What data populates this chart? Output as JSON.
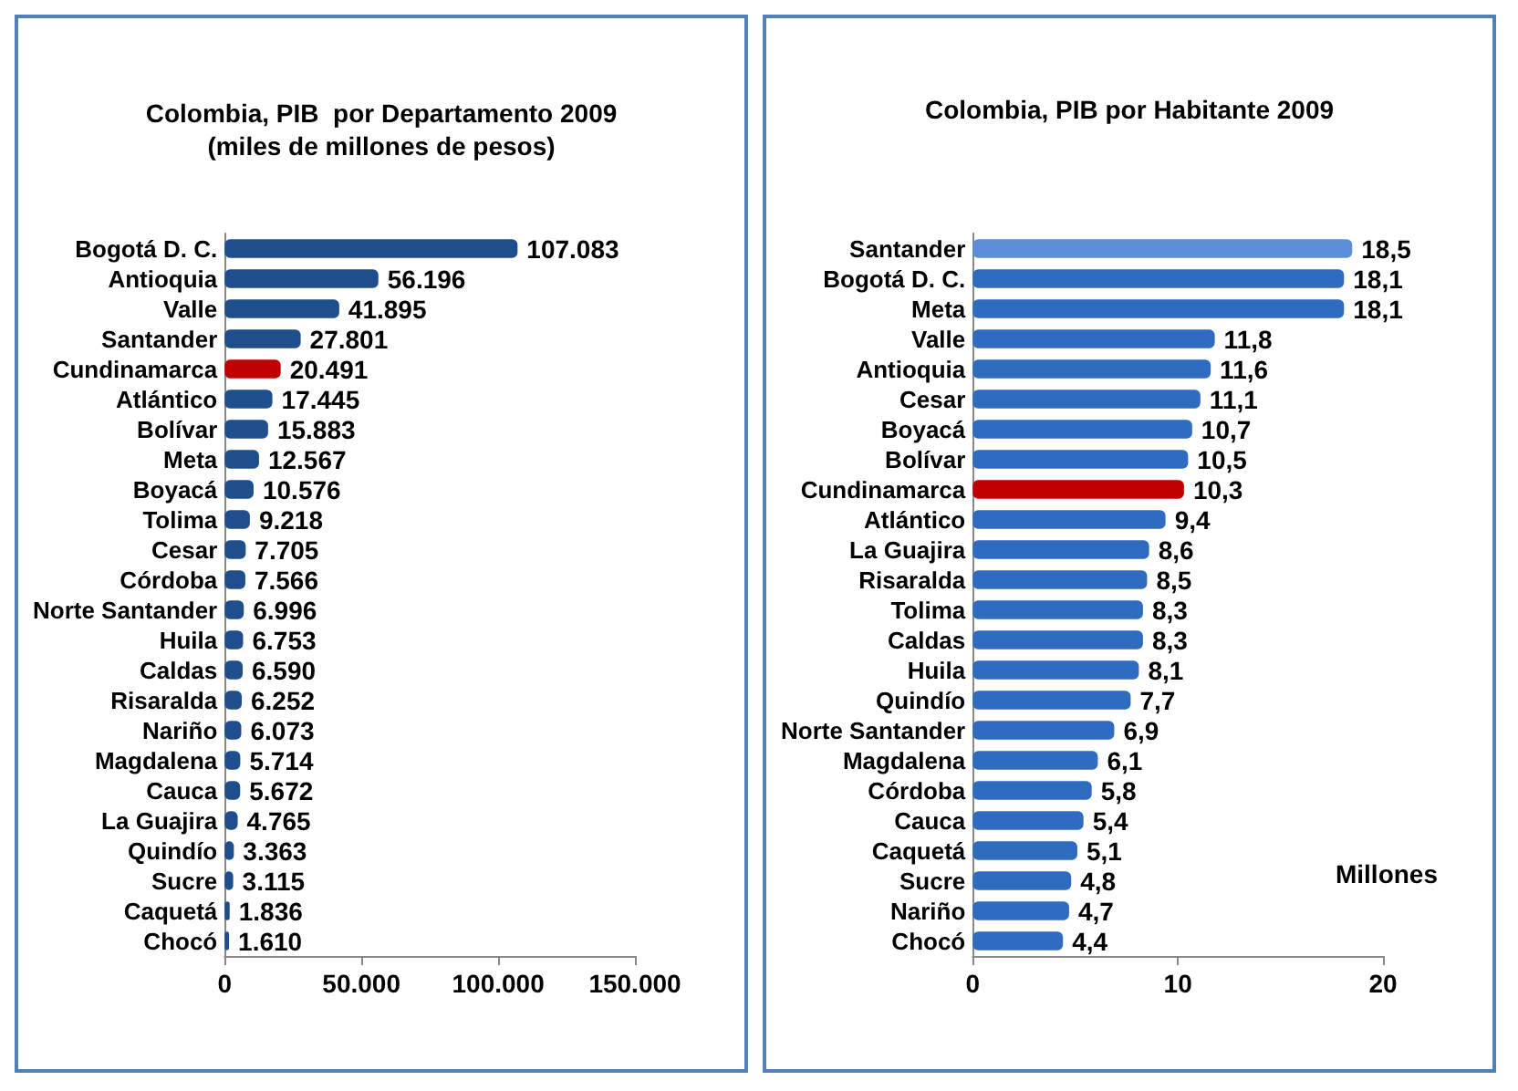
{
  "chart_data": [
    {
      "type": "bar",
      "orientation": "horizontal",
      "title": "Colombia, PIB  por Departamento 2009",
      "subtitle": "(miles de millones de pesos)",
      "categories": [
        "Bogotá D. C.",
        "Antioquia",
        "Valle",
        "Santander",
        "Cundinamarca",
        "Atlántico",
        "Bolívar",
        "Meta",
        "Boyacá",
        "Tolima",
        "Cesar",
        "Córdoba",
        "Norte Santander",
        "Huila",
        "Caldas",
        "Risaralda",
        "Nariño",
        "Magdalena",
        "Cauca",
        "La Guajira",
        "Quindío",
        "Sucre",
        "Caquetá",
        "Chocó"
      ],
      "values": [
        107083,
        56196,
        41895,
        27801,
        20491,
        17445,
        15883,
        12567,
        10576,
        9218,
        7705,
        7566,
        6996,
        6753,
        6590,
        6252,
        6073,
        5714,
        5672,
        4765,
        3363,
        3115,
        1836,
        1610
      ],
      "value_labels": [
        "107.083",
        "56.196",
        "41.895",
        "27.801",
        "20.491",
        "17.445",
        "15.883",
        "12.567",
        "10.576",
        "9.218",
        "7.705",
        "7.566",
        "6.996",
        "6.753",
        "6.590",
        "6.252",
        "6.073",
        "5.714",
        "5.672",
        "4.765",
        "3.363",
        "3.115",
        "1.836",
        "1.610"
      ],
      "colors": [
        "#1f4e8c",
        "#1f4e8c",
        "#1f4e8c",
        "#1f4e8c",
        "#c00000",
        "#1f4e8c",
        "#1f4e8c",
        "#1f4e8c",
        "#1f4e8c",
        "#1f4e8c",
        "#1f4e8c",
        "#1f4e8c",
        "#1f4e8c",
        "#1f4e8c",
        "#1f4e8c",
        "#1f4e8c",
        "#1f4e8c",
        "#1f4e8c",
        "#1f4e8c",
        "#1f4e8c",
        "#1f4e8c",
        "#1f4e8c",
        "#1f4e8c",
        "#1f4e8c"
      ],
      "xlim": [
        0,
        150000
      ],
      "xticks": [
        0,
        {
          "value": 50000,
          "label": "50.000"
        },
        {
          "value": 100000,
          "label": "100.000"
        },
        {
          "value": 150000,
          "label": "150.000"
        }
      ],
      "grid": false
    },
    {
      "type": "bar",
      "orientation": "horizontal",
      "title": "Colombia, PIB por Habitante 2009",
      "categories": [
        "Santander",
        "Bogotá D. C.",
        "Meta",
        "Valle",
        "Antioquia",
        "Cesar",
        "Boyacá",
        "Bolívar",
        "Cundinamarca",
        "Atlántico",
        "La Guajira",
        "Risaralda",
        "Tolima",
        "Caldas",
        "Huila",
        "Quindío",
        "Norte Santander",
        "Magdalena",
        "Córdoba",
        "Cauca",
        "Caquetá",
        "Sucre",
        "Nariño",
        "Chocó"
      ],
      "values": [
        18.5,
        18.1,
        18.1,
        11.8,
        11.6,
        11.1,
        10.7,
        10.5,
        10.3,
        9.4,
        8.6,
        8.5,
        8.3,
        8.3,
        8.1,
        7.7,
        6.9,
        6.1,
        5.8,
        5.4,
        5.1,
        4.8,
        4.7,
        4.4
      ],
      "value_labels": [
        "18,5",
        "18,1",
        "18,1",
        "11,8",
        "11,6",
        "11,1",
        "10,7",
        "10,5",
        "10,3",
        "9,4",
        "8,6",
        "8,5",
        "8,3",
        "8,3",
        "8,1",
        "7,7",
        "6,9",
        "6,1",
        "5,8",
        "5,4",
        "5,1",
        "4,8",
        "4,7",
        "4,4"
      ],
      "colors": [
        "#5b8fd8",
        "#2f6cc0",
        "#2f6cc0",
        "#2f6cc0",
        "#2f6cc0",
        "#2f6cc0",
        "#2f6cc0",
        "#2f6cc0",
        "#c00000",
        "#2f6cc0",
        "#2f6cc0",
        "#2f6cc0",
        "#2f6cc0",
        "#2f6cc0",
        "#2f6cc0",
        "#2f6cc0",
        "#2f6cc0",
        "#2f6cc0",
        "#2f6cc0",
        "#2f6cc0",
        "#2f6cc0",
        "#2f6cc0",
        "#2f6cc0",
        "#2f6cc0"
      ],
      "xlim": [
        0,
        20
      ],
      "xticks": [
        0,
        10,
        20
      ],
      "annotations": [
        "Millones"
      ],
      "grid": false
    }
  ]
}
